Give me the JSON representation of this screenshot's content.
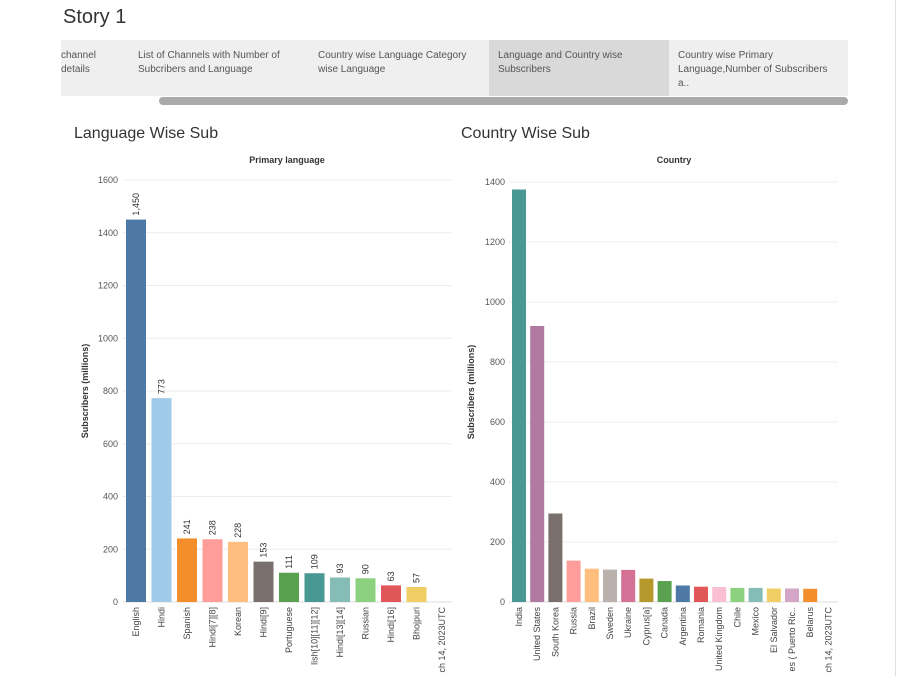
{
  "story": {
    "title": "Story 1"
  },
  "tabs": [
    {
      "line1": "channel",
      "line2": "details",
      "active": false
    },
    {
      "line1": "List of Channels with Number of",
      "line2": "Subcribers and Language",
      "active": false
    },
    {
      "line1": "Country wise Language Category",
      "line2": "wise Language",
      "active": false
    },
    {
      "line1": "Language and Country wise",
      "line2": "Subscribers",
      "active": true
    },
    {
      "line1": "Country wise Primary",
      "line2": "Language,Number of Subscribers a..",
      "active": false
    }
  ],
  "charts": {
    "left": {
      "sheet_title": "Language Wise Sub"
    },
    "right": {
      "sheet_title": "Country Wise Sub"
    }
  },
  "chart_data": [
    {
      "type": "bar",
      "title": "Primary language",
      "ylabel": "Subscribers (millions)",
      "ylim": [
        0,
        1600
      ],
      "yticks": [
        0,
        200,
        400,
        600,
        800,
        1000,
        1200,
        1400,
        1600
      ],
      "grid": true,
      "categories": [
        "English",
        "Hindi",
        "Spanish",
        "Hindi[7][8]",
        "Korean",
        "Hindi[9]",
        "Portuguese",
        "lish[10][11][12]",
        "Hindi[13][14]",
        "Russian",
        "Hindi[16]",
        "Bhojpuri",
        "ch 14, 2023UTC"
      ],
      "values": [
        1450,
        773,
        241,
        238,
        228,
        153,
        111,
        109,
        93,
        90,
        63,
        57,
        null
      ],
      "data_labels": [
        "1,450",
        "773",
        "241",
        "238",
        "228",
        "153",
        "111",
        "109",
        "93",
        "90",
        "63",
        "57",
        ""
      ],
      "colors": [
        "#4e79a7",
        "#a0cbe8",
        "#f28e2b",
        "#ff9d9a",
        "#ffbe7d",
        "#79706e",
        "#59a14f",
        "#499894",
        "#86bcb6",
        "#8cd17d",
        "#e15759",
        "#f1ce63",
        "#ffffff"
      ]
    },
    {
      "type": "bar",
      "title": "Country",
      "ylabel": "Subscribers (millions)",
      "ylim": [
        0,
        1400
      ],
      "yticks": [
        0,
        200,
        400,
        600,
        800,
        1000,
        1200,
        1400
      ],
      "grid": true,
      "categories": [
        "India",
        "United States",
        "South Korea",
        "Russia",
        "Brazil",
        "Sweden",
        "Ukraine",
        "Cyprus[a]",
        "Canada",
        "Argentina",
        "Romania",
        "United Kingdom",
        "Chile",
        "Mexico",
        "El Salvador",
        "es ( Puerto Ric..",
        "Belarus",
        "ch 14, 2023UTC"
      ],
      "values": [
        1375,
        920,
        295,
        138,
        111,
        108,
        107,
        78,
        70,
        55,
        51,
        50,
        47,
        47,
        45,
        45,
        44,
        null
      ],
      "colors": [
        "#499894",
        "#b07aa1",
        "#79706e",
        "#ff9d9a",
        "#ffbe7d",
        "#bab0ac",
        "#d37295",
        "#b6992d",
        "#59a14f",
        "#4e79a7",
        "#e15759",
        "#fabfd2",
        "#8cd17d",
        "#86bcb6",
        "#f1ce63",
        "#d4a6c8",
        "#f28e2b",
        "#ffffff"
      ]
    }
  ]
}
